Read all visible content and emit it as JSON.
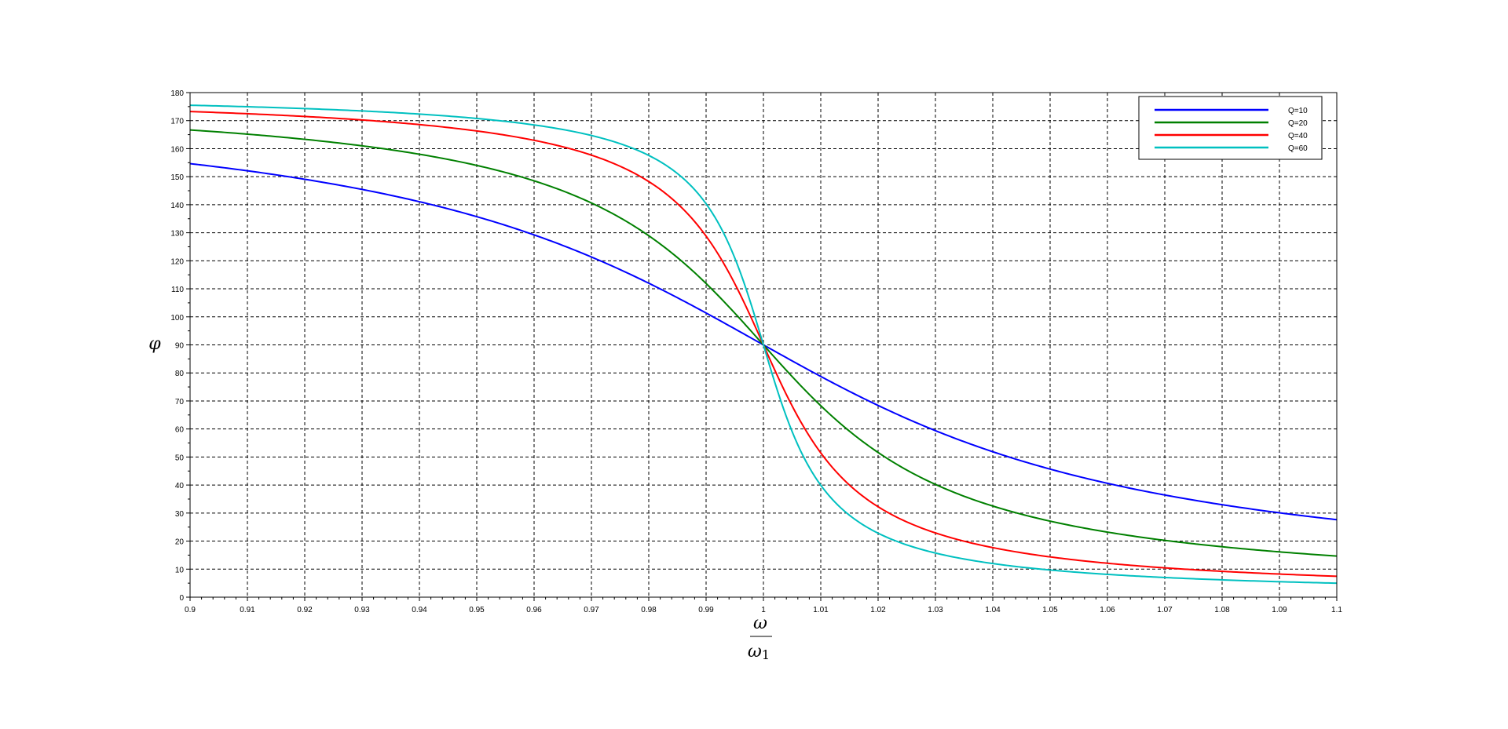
{
  "chart_data": {
    "type": "line",
    "title": "",
    "xlabel": {
      "numerator": "ω",
      "denominator_base": "ω",
      "denominator_sub": "1"
    },
    "ylabel": "φ",
    "xlim": [
      0.9,
      1.1
    ],
    "ylim": [
      0,
      180
    ],
    "xticks": [
      "0.9",
      "0.91",
      "0.92",
      "0.93",
      "0.94",
      "0.95",
      "0.96",
      "0.97",
      "0.98",
      "0.99",
      "1",
      "1.01",
      "1.02",
      "1.03",
      "1.04",
      "1.05",
      "1.06",
      "1.07",
      "1.08",
      "1.09",
      "1.1"
    ],
    "yticks": [
      "0",
      "10",
      "20",
      "30",
      "40",
      "50",
      "60",
      "70",
      "80",
      "90",
      "100",
      "110",
      "120",
      "130",
      "140",
      "150",
      "160",
      "170",
      "180"
    ],
    "grid": true,
    "legend_position": "top-right",
    "series": [
      {
        "name": "Q=10",
        "color": "#0000ff",
        "Q": 10,
        "x": [
          0.9,
          0.92,
          0.94,
          0.96,
          0.98,
          0.99,
          1.0,
          1.01,
          1.02,
          1.04,
          1.06,
          1.08,
          1.1
        ],
        "y": [
          147.3,
          140.6,
          132.4,
          121.5,
          107.1,
          98.5,
          90.0,
          81.5,
          73.3,
          59.6,
          49.6,
          42.3,
          36.8
        ]
      },
      {
        "name": "Q=20",
        "color": "#008000",
        "Q": 20,
        "x": [
          0.9,
          0.92,
          0.94,
          0.96,
          0.98,
          0.99,
          1.0,
          1.01,
          1.02,
          1.04,
          1.06,
          1.08,
          1.1
        ],
        "y": [
          162.3,
          158.0,
          151.3,
          140.2,
          120.8,
          107.0,
          90.0,
          73.1,
          60.1,
          41.1,
          30.3,
          23.7,
          19.5
        ]
      },
      {
        "name": "Q=40",
        "color": "#ff0000",
        "Q": 40,
        "x": [
          0.9,
          0.92,
          0.94,
          0.96,
          0.98,
          0.99,
          1.0,
          1.01,
          1.02,
          1.04,
          1.06,
          1.08,
          1.1
        ],
        "y": [
          171.0,
          168.8,
          165.0,
          157.4,
          140.3,
          121.6,
          90.0,
          58.6,
          40.4,
          22.8,
          15.6,
          11.8,
          9.9
        ]
      },
      {
        "name": "Q=60",
        "color": "#00c0c0",
        "Q": 60,
        "x": [
          0.9,
          0.92,
          0.94,
          0.96,
          0.98,
          0.99,
          1.0,
          1.01,
          1.02,
          1.04,
          1.06,
          1.08,
          1.1
        ],
        "y": [
          174.0,
          172.5,
          169.9,
          164.6,
          151.5,
          134.8,
          90.0,
          45.0,
          29.7,
          15.5,
          10.5,
          8.0,
          6.5
        ]
      }
    ]
  }
}
